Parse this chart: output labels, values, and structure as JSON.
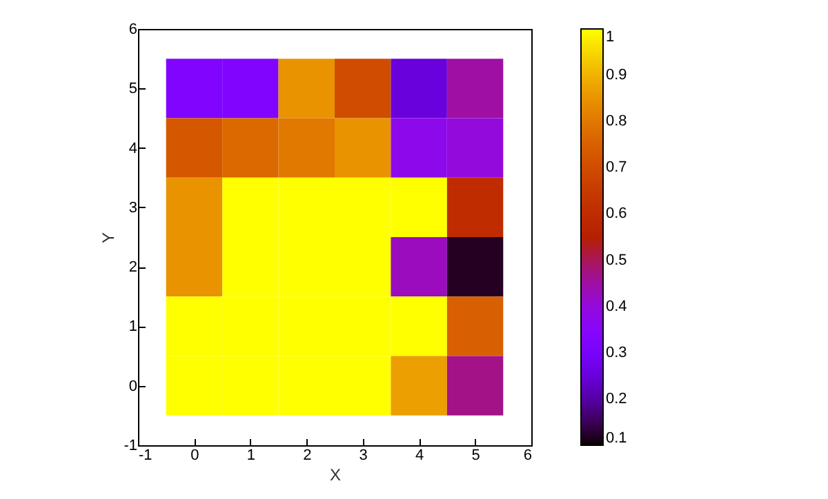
{
  "chart_data": {
    "type": "heatmap",
    "xlabel": "X",
    "ylabel": "Y",
    "x": [
      0,
      1,
      2,
      3,
      4,
      5
    ],
    "y": [
      5,
      4,
      3,
      2,
      1,
      0
    ],
    "cells": [
      [
        0.33,
        0.33,
        0.85,
        0.7,
        0.25,
        0.45
      ],
      [
        0.73,
        0.77,
        0.8,
        0.85,
        0.38,
        0.4
      ],
      [
        0.85,
        1,
        1,
        1,
        1,
        0.6
      ],
      [
        0.85,
        1,
        1,
        1,
        0.43,
        0.12
      ],
      [
        1,
        1,
        1,
        1,
        1,
        0.75
      ],
      [
        1,
        1,
        1,
        1,
        0.87,
        0.47
      ]
    ],
    "xlim": [
      -1,
      6
    ],
    "xticks": [
      -1,
      0,
      1,
      2,
      3,
      4,
      5,
      6
    ],
    "ylim": [
      -1,
      6
    ],
    "yticks": [
      -1,
      0,
      1,
      2,
      3,
      4,
      5,
      6
    ],
    "clim": [
      0.1,
      1
    ],
    "cticks": [
      0.1,
      0.2,
      0.3,
      0.4,
      0.5,
      0.6,
      0.7,
      0.8,
      0.9,
      1
    ],
    "grid": false
  }
}
